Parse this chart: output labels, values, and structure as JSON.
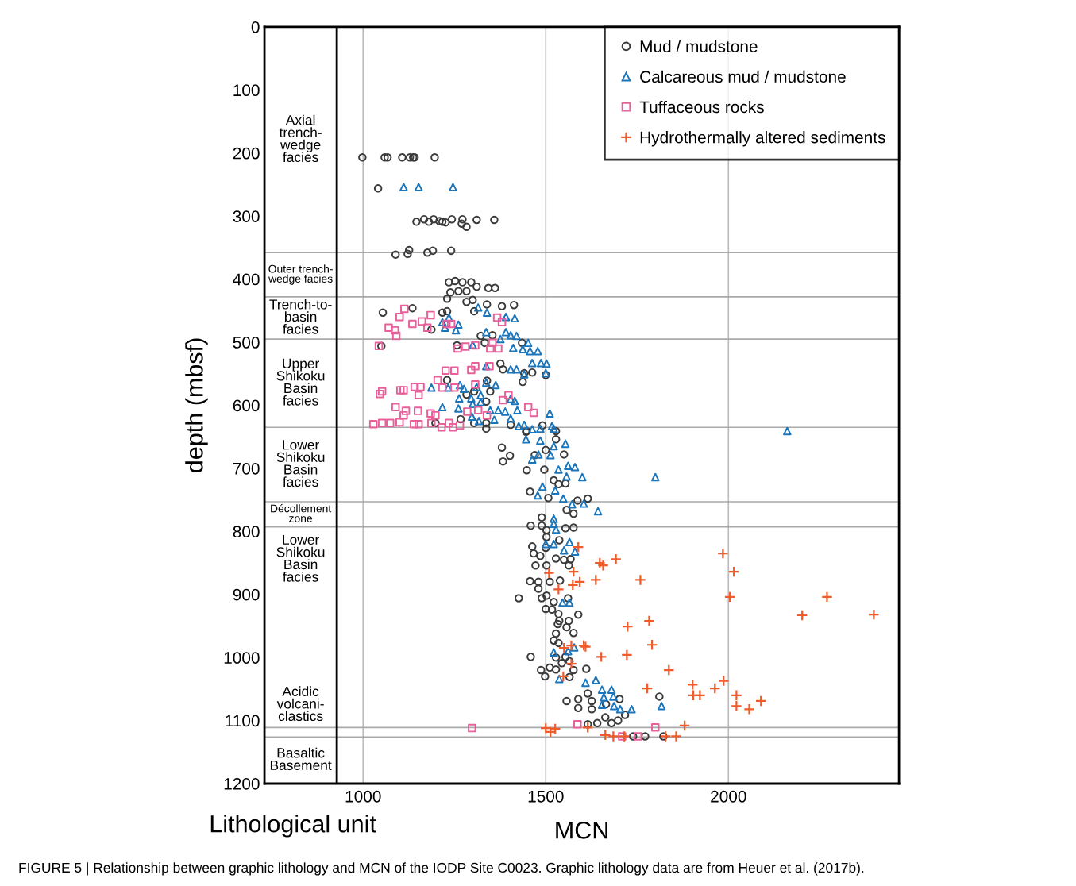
{
  "chart_data": {
    "type": "scatter",
    "xlabel": "MCN",
    "ylabel": "depth (mbsf)",
    "xlim": [
      730,
      2467
    ],
    "xticks": [
      1000,
      1500,
      2000
    ],
    "ylim": [
      1200,
      0
    ],
    "yticks": [
      0,
      100,
      200,
      300,
      400,
      500,
      600,
      700,
      800,
      900,
      1000,
      1100,
      1200
    ],
    "grid": "x",
    "legend": "top right",
    "ref_lines": [
      {
        "axis": "x",
        "value": 928,
        "color": "#000000"
      },
      {
        "axis": "y",
        "value": 358,
        "label": "Outer trench-\nwedge facies"
      },
      {
        "axis": "y",
        "value": 428,
        "label": "Trench-to-\nbasin\nfacies"
      },
      {
        "axis": "y",
        "value": 495,
        "label": "Upper\nShikoku\nBasin\nfacies"
      },
      {
        "axis": "y",
        "value": 635,
        "label": "Lower\nShikoku\nBasin\nfacies"
      },
      {
        "axis": "y",
        "value": 753,
        "label": "Décollement\nzone"
      },
      {
        "axis": "y",
        "value": 793,
        "label": "Lower\nShikoku\nBasin\nfacies"
      },
      {
        "axis": "y",
        "value": 1111,
        "label": "Acidic\nvolcani-\nclastics"
      },
      {
        "axis": "y",
        "value": 1126,
        "label": "Basaltic\nBasement"
      }
    ],
    "annotations": [
      "FIGURE 5 | Relationship between graphic lithology and MCN of the IODP Site C0023. Graphic lithology data are from Heuer et al. (2017b).",
      "Lithological unit",
      "Axial\ntrench-\nwedge\nfacies"
    ],
    "series": [
      {
        "name": "Mud / mudstone",
        "color": "#3a3a3a",
        "marker": "circle",
        "x": [
          998,
          1059,
          1067,
          1107,
          1128,
          1137,
          1141,
          1196,
          1041,
          1146,
          1167,
          1180,
          1193,
          1209,
          1217,
          1226,
          1243,
          1272,
          1270,
          1283,
          1311,
          1359,
          1089,
          1122,
          1126,
          1176,
          1191,
          1241,
          1235,
          1252,
          1272,
          1296,
          1311,
          1343,
          1361,
          1239,
          1261,
          1283,
          1230,
          1300,
          1054,
          1135,
          1217,
          1230,
          1283,
          1304,
          1339,
          1380,
          1413,
          1187,
          1322,
          1354,
          1050,
          1257,
          1333,
          1435,
          1376,
          1441,
          1463,
          1500,
          1383,
          1230,
          1339,
          1437,
          1304,
          1348,
          1337,
          1283,
          1267,
          1304,
          1198,
          1337,
          1404,
          1448,
          1491,
          1528,
          1337,
          1446,
          1380,
          1402,
          1383,
          1448,
          1496,
          1470,
          1500,
          1528,
          1550,
          1522,
          1535,
          1554,
          1457,
          1507,
          1587,
          1615,
          1576,
          1557,
          1489,
          1459,
          1489,
          1502,
          1576,
          1554,
          1502,
          1537,
          1463,
          1467,
          1485,
          1500,
          1472,
          1502,
          1528,
          1550,
          1568,
          1563,
          1457,
          1480,
          1480,
          1511,
          1539,
          1502,
          1489,
          1426,
          1522,
          1561,
          1500,
          1517,
          1535,
          1589,
          1537,
          1563,
          1533,
          1557,
          1528,
          1576,
          1522,
          1535,
          1459,
          1528,
          1554,
          1544,
          1565,
          1611,
          1487,
          1511,
          1528,
          1576,
          1498,
          1565,
          1557,
          1589,
          1615,
          1626,
          1665,
          1702,
          1589,
          1626,
          1663,
          1680,
          1698,
          1717,
          1641,
          1615,
          1811,
          1739,
          1772,
          1822
        ],
        "values": [
          207,
          207,
          207,
          207,
          207,
          207,
          207,
          207,
          256,
          309,
          305,
          309,
          305,
          308,
          309,
          310,
          305,
          305,
          312,
          317,
          306,
          306,
          361,
          360,
          354,
          358,
          355,
          355,
          405,
          403,
          405,
          405,
          412,
          414,
          414,
          421,
          419,
          419,
          431,
          433,
          453,
          446,
          453,
          451,
          436,
          451,
          440,
          443,
          441,
          480,
          490,
          489,
          506,
          505,
          501,
          501,
          534,
          549,
          548,
          552,
          543,
          560,
          561,
          563,
          578,
          578,
          594,
          583,
          622,
          628,
          628,
          628,
          631,
          641,
          632,
          641,
          637,
          642,
          667,
          680,
          689,
          703,
          702,
          679,
          671,
          654,
          678,
          719,
          725,
          724,
          737,
          747,
          751,
          748,
          772,
          766,
          778,
          791,
          791,
          798,
          794,
          795,
          809,
          814,
          824,
          835,
          839,
          826,
          854,
          854,
          843,
          845,
          844,
          854,
          879,
          880,
          891,
          880,
          878,
          902,
          906,
          906,
          912,
          906,
          923,
          924,
          931,
          932,
          942,
          942,
          947,
          952,
          962,
          961,
          973,
          977,
          999,
          1000,
          999,
          1009,
          1006,
          1018,
          1020,
          1016,
          1019,
          1020,
          1030,
          1031,
          1069,
          1066,
          1057,
          1069,
          1074,
          1066,
          1080,
          1082,
          1095,
          1104,
          1100,
          1091,
          1104,
          1106,
          1062,
          1125,
          1125,
          1125
        ]
      },
      {
        "name": "Calcareous mud / mudstone",
        "color": "#1b75bb",
        "marker": "triangle",
        "x": [
          1111,
          1152,
          1246,
          1315,
          1339,
          1235,
          1217,
          1261,
          1224,
          1254,
          1391,
          1415,
          1337,
          1391,
          1404,
          1420,
          1376,
          1452,
          1437,
          1457,
          1478,
          1411,
          1300,
          1463,
          1487,
          1502,
          1404,
          1420,
          1337,
          1500,
          1441,
          1187,
          1233,
          1265,
          1276,
          1311,
          1337,
          1363,
          1263,
          1296,
          1322,
          1404,
          1415,
          1217,
          1261,
          1300,
          1322,
          1348,
          1370,
          1389,
          1422,
          1511,
          1298,
          1317,
          1359,
          1404,
          1426,
          1441,
          1485,
          1522,
          1463,
          1517,
          1446,
          1485,
          1522,
          1554,
          1513,
          1463,
          1480,
          1535,
          1561,
          1580,
          1557,
          1600,
          1491,
          1478,
          1526,
          1548,
          1572,
          1604,
          1643,
          1522,
          1522,
          1528,
          1500,
          1522,
          1565,
          2161,
          1800,
          1550,
          1580,
          1546,
          1565,
          1522,
          1578,
          1561,
          1537,
          1609,
          1637,
          1654,
          1680,
          1659,
          1685,
          1654,
          1687,
          1704,
          1735,
          1817
        ],
        "values": [
          254,
          254,
          254,
          445,
          453,
          461,
          468,
          472,
          477,
          481,
          460,
          462,
          484,
          484,
          489,
          490,
          495,
          501,
          511,
          514,
          514,
          509,
          504,
          533,
          533,
          534,
          543,
          543,
          538,
          549,
          551,
          572,
          572,
          568,
          574,
          571,
          564,
          568,
          589,
          589,
          584,
          590,
          593,
          603,
          605,
          598,
          595,
          608,
          608,
          610,
          608,
          613,
          618,
          625,
          623,
          621,
          633,
          631,
          637,
          637,
          638,
          633,
          654,
          656,
          665,
          661,
          679,
          686,
          678,
          702,
          696,
          698,
          713,
          714,
          729,
          743,
          735,
          748,
          757,
          756,
          768,
          780,
          788,
          797,
          820,
          820,
          817,
          641,
          714,
          830,
          832,
          913,
          913,
          992,
          984,
          990,
          1034,
          1040,
          1036,
          1051,
          1051,
          1063,
          1062,
          1075,
          1077,
          1082,
          1082,
          1077
        ]
      },
      {
        "name": "Tuffaceous rocks",
        "color": "#e8609a",
        "marker": "square",
        "x": [
          1113,
          1100,
          1070,
          1087,
          1091,
          1043,
          1185,
          1161,
          1135,
          1176,
          1228,
          1241,
          1367,
          1380,
          1259,
          1280,
          1307,
          1354,
          1348,
          1370,
          1226,
          1250,
          1296,
          1307,
          1346,
          1204,
          1217,
          1052,
          1046,
          1102,
          1111,
          1141,
          1157,
          1152,
          1250,
          1307,
          1398,
          1383,
          1089,
          1117,
          1150,
          1111,
          1185,
          1198,
          1285,
          1315,
          1339,
          1452,
          1467,
          1028,
          1052,
          1074,
          1100,
          1139,
          1152,
          1187,
          1215,
          1235,
          1246,
          1265,
          1298,
          1587,
          1709,
          1752,
          1800
        ],
        "values": [
          447,
          460,
          477,
          481,
          490,
          506,
          457,
          467,
          471,
          477,
          471,
          471,
          461,
          468,
          510,
          507,
          505,
          501,
          510,
          510,
          545,
          545,
          544,
          538,
          538,
          560,
          572,
          578,
          582,
          576,
          576,
          571,
          571,
          584,
          572,
          567,
          584,
          592,
          603,
          609,
          609,
          616,
          613,
          616,
          610,
          608,
          616,
          603,
          612,
          630,
          628,
          628,
          627,
          630,
          630,
          628,
          635,
          628,
          635,
          632,
          1112,
          1106,
          1125,
          1125,
          1111
        ]
      },
      {
        "name": "Hydrothermally altered sediments",
        "color": "#f15a29",
        "marker": "cross",
        "x": [
          1589,
          1576,
          1648,
          1657,
          1692,
          1593,
          1637,
          1759,
          1985,
          2015,
          2004,
          2202,
          2270,
          2398,
          1724,
          1783,
          1791,
          1609,
          1652,
          1722,
          1837,
          1987,
          1902,
          1778,
          1904,
          1922,
          1963,
          2022,
          2022,
          2057,
          2089,
          1880,
          1500,
          1513,
          1526,
          1615,
          1663,
          1685,
          1715,
          1828,
          1857,
          1509,
          1535,
          1574,
          1604,
          1550,
          1570,
          1570,
          1548
        ],
        "values": [
          825,
          864,
          850,
          854,
          844,
          880,
          877,
          877,
          835,
          864,
          904,
          933,
          904,
          932,
          951,
          942,
          980,
          983,
          999,
          996,
          1020,
          1037,
          1043,
          1049,
          1060,
          1060,
          1049,
          1060,
          1077,
          1082,
          1069,
          1108,
          1112,
          1118,
          1113,
          1111,
          1123,
          1125,
          1125,
          1125,
          1125,
          866,
          892,
          885,
          981,
          985,
          981,
          1010,
          1030
        ]
      }
    ]
  }
}
